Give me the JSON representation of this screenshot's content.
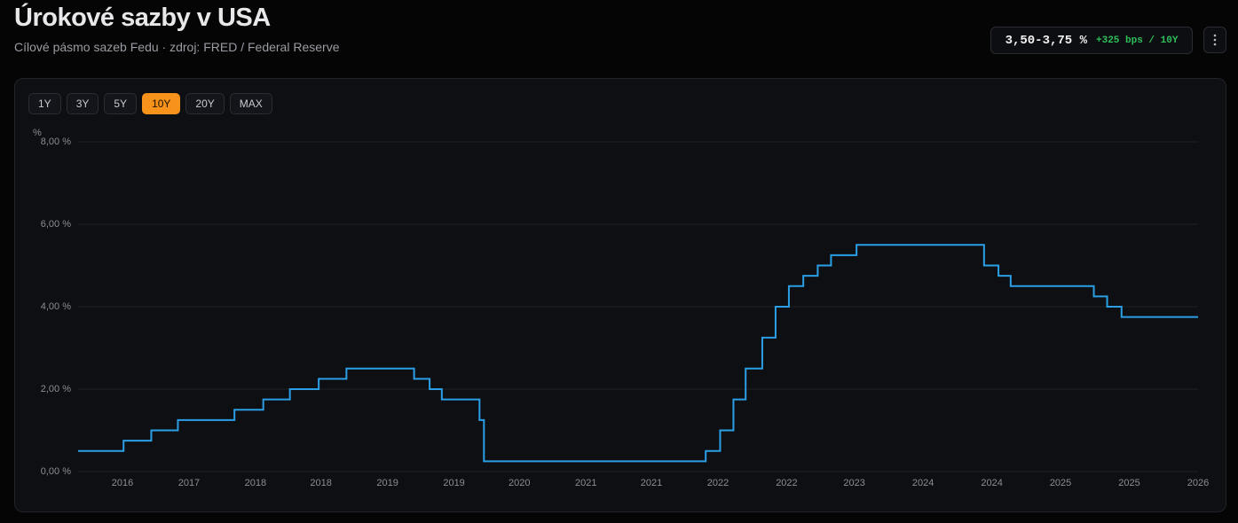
{
  "header": {
    "title": "Úrokové sazby v USA",
    "subtitle": "Cílové pásmo sazeb Fedu · zdroj: FRED / Federal Reserve"
  },
  "badge": {
    "value": "3,50-3,75 %",
    "change": "+325 bps / 10Y"
  },
  "range_buttons": {
    "options": [
      "1Y",
      "3Y",
      "5Y",
      "10Y",
      "20Y",
      "MAX"
    ],
    "selected": "10Y"
  },
  "chart_data": {
    "type": "line",
    "step": "post",
    "color": "#2b9fe6",
    "y_unit": "%",
    "x": [
      2016.55,
      2016.96,
      2017.21,
      2017.45,
      2017.96,
      2018.22,
      2018.46,
      2018.72,
      2018.97,
      2019.58,
      2019.72,
      2019.83,
      2020.17,
      2020.21,
      2022.21,
      2022.34,
      2022.46,
      2022.57,
      2022.72,
      2022.84,
      2022.96,
      2023.09,
      2023.22,
      2023.34,
      2023.57,
      2024.72,
      2024.85,
      2024.96,
      2025.71,
      2025.83,
      2025.96,
      2026.65
    ],
    "values": [
      0.5,
      0.75,
      1.0,
      1.25,
      1.5,
      1.75,
      2.0,
      2.25,
      2.5,
      2.25,
      2.0,
      1.75,
      1.25,
      0.25,
      0.5,
      1.0,
      1.75,
      2.5,
      3.25,
      4.0,
      4.5,
      4.75,
      5.0,
      5.25,
      5.5,
      5.0,
      4.75,
      4.5,
      4.25,
      4.0,
      3.75,
      3.75
    ],
    "xlim": [
      2016.55,
      2026.65
    ],
    "xticks": [
      {
        "value": 2016.95,
        "label": "2016"
      },
      {
        "value": 2017.55,
        "label": "2017"
      },
      {
        "value": 2018.15,
        "label": "2018"
      },
      {
        "value": 2018.74,
        "label": "2018"
      },
      {
        "value": 2019.34,
        "label": "2019"
      },
      {
        "value": 2019.94,
        "label": "2019"
      },
      {
        "value": 2020.53,
        "label": "2020"
      },
      {
        "value": 2021.13,
        "label": "2021"
      },
      {
        "value": 2021.72,
        "label": "2021"
      },
      {
        "value": 2022.32,
        "label": "2022"
      },
      {
        "value": 2022.94,
        "label": "2022"
      },
      {
        "value": 2023.55,
        "label": "2023"
      },
      {
        "value": 2024.17,
        "label": "2024"
      },
      {
        "value": 2024.79,
        "label": "2024"
      },
      {
        "value": 2025.41,
        "label": "2025"
      },
      {
        "value": 2026.03,
        "label": "2025"
      },
      {
        "value": 2026.65,
        "label": "2026"
      }
    ],
    "ylim": [
      0,
      8
    ],
    "yticks": [
      {
        "value": 0,
        "label": "0,00 %"
      },
      {
        "value": 2,
        "label": "2,00 %"
      },
      {
        "value": 4,
        "label": "4,00 %"
      },
      {
        "value": 6,
        "label": "6,00 %"
      },
      {
        "value": 8,
        "label": "8,00 %"
      }
    ],
    "grid": true
  }
}
